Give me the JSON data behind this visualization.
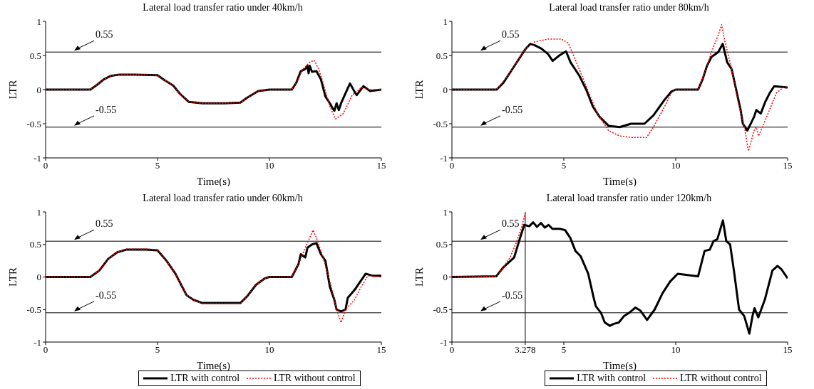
{
  "chart_data": [
    {
      "type": "line",
      "title": "Lateral load transfer ratio under 40km/h",
      "xlabel": "Time(s)",
      "ylabel": "LTR",
      "xlim": [
        0,
        15
      ],
      "xticks": [
        0,
        5,
        10,
        15
      ],
      "ylim": [
        -1,
        1
      ],
      "yticks": [
        -1,
        -0.5,
        0,
        0.5,
        1
      ],
      "grid": false,
      "legend": false,
      "marker": "none",
      "ref_lines": [
        {
          "axis": "y",
          "value": 0.55,
          "label": "0.55",
          "color": "#000000"
        },
        {
          "axis": "y",
          "value": -0.55,
          "label": "-0.55",
          "color": "#000000"
        }
      ],
      "series": [
        {
          "color": "#000000",
          "line_style": "solid",
          "x": [
            0,
            2,
            2.3,
            2.6,
            2.9,
            3.3,
            4,
            5,
            5.3,
            5.7,
            6,
            6.4,
            7,
            8,
            8.7,
            9,
            9.5,
            10,
            11,
            11.2,
            11.4,
            11.6,
            11.7,
            11.75,
            11.8,
            11.9,
            12.1,
            12.3,
            12.5,
            12.7,
            12.8,
            12.9,
            13,
            13.1,
            13.2,
            13.5,
            13.6,
            13.8,
            13.9,
            14.2,
            14.5,
            15
          ],
          "values": [
            0,
            0,
            0.07,
            0.15,
            0.2,
            0.22,
            0.22,
            0.21,
            0.14,
            0.06,
            -0.06,
            -0.18,
            -0.2,
            -0.2,
            -0.19,
            -0.12,
            -0.02,
            0,
            0,
            0.1,
            0.27,
            0.3,
            0.35,
            0.24,
            0.35,
            0.26,
            0.27,
            0.15,
            -0.1,
            -0.2,
            -0.26,
            -0.31,
            -0.2,
            -0.3,
            -0.2,
            0.02,
            0.09,
            -0.03,
            -0.08,
            0.05,
            -0.02,
            0
          ]
        },
        {
          "color": "#ff0000",
          "line_style": "dotted",
          "x": [
            0,
            2,
            2.3,
            2.6,
            2.9,
            3.3,
            4,
            5,
            5.3,
            5.7,
            6,
            6.4,
            7,
            8,
            8.7,
            9,
            9.5,
            10,
            11,
            11.2,
            11.5,
            11.8,
            12,
            12.2,
            12.4,
            12.7,
            12.95,
            13.3,
            13.7,
            14.1,
            14.5,
            15
          ],
          "values": [
            0,
            0,
            0.07,
            0.15,
            0.2,
            0.22,
            0.22,
            0.21,
            0.14,
            0.06,
            -0.06,
            -0.18,
            -0.2,
            -0.2,
            -0.19,
            -0.12,
            -0.02,
            0,
            0,
            0.1,
            0.3,
            0.4,
            0.43,
            0.3,
            0.1,
            -0.25,
            -0.43,
            -0.35,
            -0.08,
            0.03,
            0,
            0
          ]
        }
      ]
    },
    {
      "type": "line",
      "title": "Lateral load transfer ratio under 80km/h",
      "xlabel": "Time(s)",
      "ylabel": "LTR",
      "xlim": [
        0,
        15
      ],
      "xticks": [
        0,
        5,
        10,
        15
      ],
      "ylim": [
        -1,
        1
      ],
      "yticks": [
        -1,
        -0.5,
        0,
        0.5,
        1
      ],
      "grid": false,
      "legend": false,
      "marker": "none",
      "ref_lines": [
        {
          "axis": "y",
          "value": 0.55,
          "label": "0.55",
          "color": "#000000"
        },
        {
          "axis": "y",
          "value": -0.55,
          "label": "-0.55",
          "color": "#000000"
        }
      ],
      "series": [
        {
          "color": "#000000",
          "line_style": "solid",
          "x": [
            0,
            2,
            2.3,
            2.6,
            3,
            3.3,
            3.5,
            3.7,
            4,
            4.3,
            4.5,
            4.8,
            5.1,
            5.3,
            5.7,
            6,
            6.3,
            6.6,
            7,
            7.5,
            8,
            8.6,
            9,
            9.5,
            9.8,
            10,
            11,
            11.2,
            11.4,
            11.6,
            11.9,
            12.1,
            12.3,
            12.5,
            12.7,
            12.9,
            13,
            13.2,
            13.5,
            13.6,
            13.8,
            14,
            14.2,
            14.4,
            15
          ],
          "values": [
            0,
            0,
            0.1,
            0.25,
            0.45,
            0.6,
            0.67,
            0.65,
            0.6,
            0.52,
            0.42,
            0.5,
            0.56,
            0.4,
            0.2,
            0,
            -0.25,
            -0.4,
            -0.53,
            -0.55,
            -0.5,
            -0.5,
            -0.38,
            -0.15,
            -0.03,
            0,
            0,
            0.15,
            0.35,
            0.48,
            0.55,
            0.67,
            0.4,
            0.3,
            0,
            -0.3,
            -0.5,
            -0.6,
            -0.4,
            -0.3,
            -0.35,
            -0.18,
            -0.05,
            0.05,
            0.03
          ]
        },
        {
          "color": "#ff0000",
          "line_style": "dotted",
          "x": [
            0,
            2,
            2.5,
            3,
            3.3,
            3.7,
            4.3,
            4.9,
            5.2,
            5.5,
            6,
            6.5,
            7,
            7.5,
            8,
            8.7,
            9,
            9.5,
            9.8,
            10,
            11,
            11.3,
            11.6,
            11.9,
            12.05,
            12.2,
            12.5,
            12.8,
            13.1,
            13.25,
            13.5,
            13.6,
            13.7,
            14,
            14.5,
            14.8,
            15
          ],
          "values": [
            0,
            0,
            0.2,
            0.45,
            0.6,
            0.7,
            0.74,
            0.74,
            0.68,
            0.45,
            0.05,
            -0.35,
            -0.6,
            -0.68,
            -0.7,
            -0.7,
            -0.55,
            -0.25,
            -0.05,
            0,
            0,
            0.25,
            0.55,
            0.8,
            0.95,
            0.7,
            0.3,
            -0.2,
            -0.6,
            -0.9,
            -0.6,
            -0.55,
            -0.68,
            -0.45,
            -0.05,
            0.03,
            0.02
          ]
        }
      ]
    },
    {
      "type": "line",
      "title": "Lateral load transfer ratio under 60km/h",
      "xlabel": "Time(s)",
      "ylabel": "LTR",
      "xlim": [
        0,
        15
      ],
      "xticks": [
        0,
        5,
        10,
        15
      ],
      "ylim": [
        -1,
        1
      ],
      "yticks": [
        -1,
        -0.5,
        0,
        0.5,
        1
      ],
      "grid": false,
      "legend": "bottom",
      "marker": "none",
      "ref_lines": [
        {
          "axis": "y",
          "value": 0.55,
          "label": "0.55",
          "color": "#000000"
        },
        {
          "axis": "y",
          "value": -0.55,
          "label": "-0.55",
          "color": "#000000"
        }
      ],
      "series": [
        {
          "name": "LTR with control",
          "color": "#000000",
          "line_style": "solid",
          "x": [
            0,
            2,
            2.4,
            2.8,
            3.2,
            3.6,
            4.5,
            5,
            5.4,
            5.8,
            6.1,
            6.3,
            6.6,
            7,
            8,
            8.7,
            9,
            9.4,
            9.8,
            10,
            11,
            11.3,
            11.4,
            11.6,
            11.7,
            11.9,
            12.1,
            12.3,
            12.5,
            12.7,
            12.9,
            13,
            13.2,
            13.4,
            13.5,
            13.8,
            14.1,
            14.3,
            14.6,
            15
          ],
          "values": [
            0,
            0,
            0.1,
            0.28,
            0.38,
            0.42,
            0.42,
            0.41,
            0.25,
            0.05,
            -0.15,
            -0.28,
            -0.35,
            -0.4,
            -0.4,
            -0.4,
            -0.3,
            -0.12,
            -0.02,
            0,
            0,
            0.2,
            0.35,
            0.3,
            0.45,
            0.5,
            0.52,
            0.35,
            0.25,
            -0.15,
            -0.35,
            -0.5,
            -0.53,
            -0.5,
            -0.32,
            -0.2,
            -0.05,
            0.05,
            0.02,
            0.02
          ]
        },
        {
          "name": "LTR without control",
          "color": "#ff0000",
          "line_style": "dotted",
          "x": [
            0,
            2,
            2.4,
            2.8,
            3.2,
            3.6,
            4.5,
            5,
            5.4,
            5.8,
            6.1,
            6.3,
            6.6,
            7,
            8.7,
            9,
            9.4,
            9.8,
            10,
            11,
            11.3,
            11.6,
            11.95,
            12.1,
            12.4,
            12.8,
            13,
            13.2,
            13.4,
            13.8,
            14.1,
            14.4,
            15
          ],
          "values": [
            0,
            0,
            0.1,
            0.28,
            0.38,
            0.43,
            0.43,
            0.42,
            0.25,
            0.05,
            -0.15,
            -0.28,
            -0.35,
            -0.41,
            -0.41,
            -0.3,
            -0.12,
            -0.02,
            0,
            0,
            0.2,
            0.45,
            0.72,
            0.6,
            0.3,
            -0.2,
            -0.5,
            -0.7,
            -0.5,
            -0.35,
            -0.15,
            0.02,
            0
          ]
        }
      ]
    },
    {
      "type": "line",
      "title": "Lateral load transfer ratio under 120km/h",
      "xlabel": "Time(s)",
      "ylabel": "LTR",
      "xlim": [
        0,
        15
      ],
      "xticks": [
        0,
        {
          "value": 3.278,
          "label": "3.278"
        },
        5,
        10,
        15
      ],
      "ylim": [
        -1,
        1
      ],
      "yticks": [
        -1,
        -0.5,
        0,
        0.5,
        1
      ],
      "grid": false,
      "legend": "bottom",
      "marker": "none",
      "ref_lines": [
        {
          "axis": "y",
          "value": 0.55,
          "label": "0.55",
          "color": "#000000"
        },
        {
          "axis": "y",
          "value": -0.55,
          "label": "-0.55",
          "color": "#000000"
        },
        {
          "axis": "x",
          "value": 3.278,
          "color": "#000000"
        }
      ],
      "series": [
        {
          "name": "LTR with control",
          "color": "#000000",
          "line_style": "solid",
          "x": [
            0,
            1.98,
            2.3,
            2.78,
            3,
            3.23,
            3.46,
            3.63,
            3.8,
            3.98,
            4.15,
            4.32,
            4.49,
            4.83,
            5.06,
            5.29,
            5.52,
            5.75,
            6.09,
            6.32,
            6.43,
            6.66,
            6.83,
            7.06,
            7.23,
            7.46,
            7.69,
            7.92,
            8.2,
            8.43,
            8.72,
            9.06,
            9.41,
            9.75,
            10.09,
            10.78,
            11,
            11.29,
            11.52,
            11.69,
            11.86,
            12.11,
            12.26,
            12.43,
            12.6,
            12.83,
            13.06,
            13.29,
            13.43,
            13.52,
            13.69,
            13.98,
            14.32,
            14.55,
            14.72,
            15
          ],
          "values": [
            0,
            0.01,
            0.15,
            0.3,
            0.55,
            0.8,
            0.78,
            0.84,
            0.77,
            0.83,
            0.76,
            0.8,
            0.74,
            0.74,
            0.72,
            0.6,
            0.4,
            0.32,
            0.05,
            -0.3,
            -0.45,
            -0.55,
            -0.7,
            -0.75,
            -0.72,
            -0.7,
            -0.6,
            -0.55,
            -0.47,
            -0.52,
            -0.66,
            -0.5,
            -0.25,
            -0.07,
            0.05,
            0.02,
            0.01,
            0.4,
            0.42,
            0.55,
            0.58,
            0.87,
            0.55,
            0.5,
            0.1,
            -0.5,
            -0.6,
            -0.87,
            -0.6,
            -0.48,
            -0.62,
            -0.35,
            0.1,
            0.17,
            0.12,
            -0.02
          ]
        },
        {
          "name": "LTR without control",
          "color": "#ff0000",
          "line_style": "dotted",
          "x": [
            0,
            2,
            2.3,
            2.6,
            2.9,
            3.1,
            3.278
          ],
          "values": [
            0,
            0.01,
            0.15,
            0.3,
            0.55,
            0.75,
            0.98
          ]
        }
      ]
    }
  ]
}
